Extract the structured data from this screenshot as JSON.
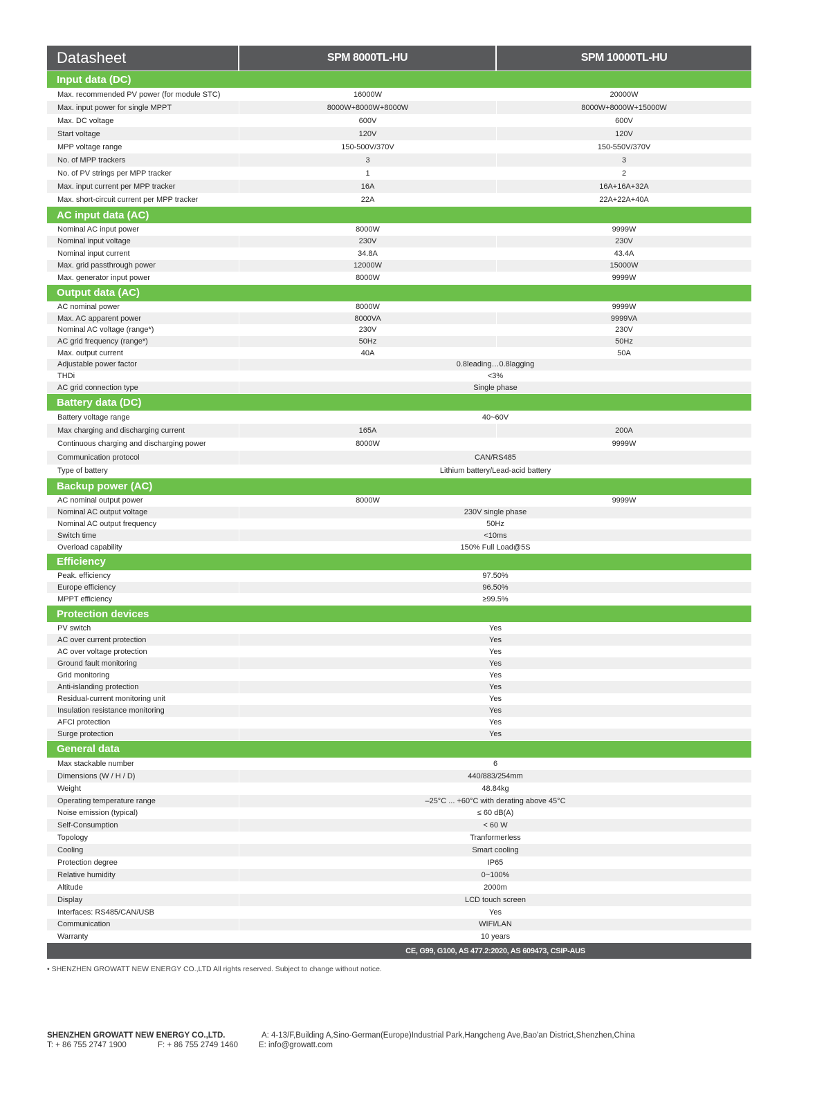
{
  "header": {
    "title": "Datasheet",
    "model1": "SPM 8000TL-HU",
    "model2": "SPM 10000TL-HU"
  },
  "colors": {
    "section_green": "#6cc04a",
    "header_gray": "#58595b",
    "row_alt": "#efefef"
  },
  "sections": [
    {
      "title": "Input data (DC)",
      "rows": [
        [
          "Max. recommended PV power (for module STC)",
          "16000W",
          "20000W"
        ],
        [
          "Max. input power for single MPPT",
          "8000W+8000W+8000W",
          "8000W+8000W+15000W"
        ],
        [
          "Max. DC voltage",
          "600V",
          "600V"
        ],
        [
          "Start voltage",
          "120V",
          "120V"
        ],
        [
          "MPP voltage range",
          "150-500V/370V",
          "150-550V/370V"
        ],
        [
          "No. of MPP trackers",
          "3",
          "3"
        ],
        [
          "No. of PV strings per MPP tracker",
          "1",
          "2"
        ],
        [
          "Max. input current per MPP tracker",
          "16A",
          "16A+16A+32A"
        ],
        [
          "Max. short-circuit current per MPP tracker",
          "22A",
          "22A+22A+40A"
        ]
      ]
    },
    {
      "title": "AC input data (AC)",
      "rows": [
        [
          "Nominal AC input power",
          "8000W",
          "9999W"
        ],
        [
          "Nominal input voltage",
          "230V",
          "230V"
        ],
        [
          "Nominal input current",
          "34.8A",
          "43.4A"
        ],
        [
          "Max. grid passthrough power",
          "12000W",
          "15000W"
        ],
        [
          "Max. generator input power",
          "8000W",
          "9999W"
        ]
      ]
    },
    {
      "title": "Output data (AC)",
      "rows": [
        [
          "AC nominal power",
          "8000W",
          "9999W"
        ],
        [
          "Max. AC apparent power",
          "8000VA",
          "9999VA"
        ],
        [
          "Nominal AC voltage (range*)",
          "230V",
          "230V"
        ],
        [
          "AC grid frequency (range*)",
          "50Hz",
          "50Hz"
        ],
        [
          "Max. output current",
          "40A",
          "50A"
        ],
        [
          "Adjustable power factor",
          "0.8leading…0.8lagging"
        ],
        [
          "THDi",
          "<3%"
        ],
        [
          "AC grid connection type",
          "Single phase"
        ]
      ]
    },
    {
      "title": "Battery data (DC)",
      "rows": [
        [
          "Battery voltage range",
          "40~60V"
        ],
        [
          "Max charging and discharging current",
          "165A",
          "200A"
        ],
        [
          "Continuous charging and discharging power",
          "8000W",
          "9999W"
        ],
        [
          "Communication protocol",
          "CAN/RS485"
        ],
        [
          "Type of battery",
          "Lithium battery/Lead-acid battery"
        ]
      ]
    },
    {
      "title": "Backup power (AC)",
      "rows": [
        [
          "AC nominal output power",
          "8000W",
          "9999W"
        ],
        [
          "Nominal AC output voltage",
          "230V single phase"
        ],
        [
          "Nominal AC output frequency",
          "50Hz"
        ],
        [
          "Switch time",
          "<10ms"
        ],
        [
          "Overload capability",
          "150% Full Load@5S"
        ]
      ]
    },
    {
      "title": "Efficiency",
      "rows": [
        [
          "Peak. efficiency",
          "97.50%"
        ],
        [
          "Europe efficiency",
          "96.50%"
        ],
        [
          "MPPT efficiency",
          "≥99.5%"
        ]
      ]
    },
    {
      "title": "Protection devices",
      "rows": [
        [
          "PV switch",
          "Yes"
        ],
        [
          "AC over current protection",
          "Yes"
        ],
        [
          "AC over voltage protection",
          "Yes"
        ],
        [
          "Ground fault monitoring",
          "Yes"
        ],
        [
          "Grid monitoring",
          "Yes"
        ],
        [
          "Anti-islanding protection",
          "Yes"
        ],
        [
          "Residual-current monitoring unit",
          "Yes"
        ],
        [
          "Insulation resistance monitoring",
          "Yes"
        ],
        [
          "AFCI protection",
          "Yes"
        ],
        [
          "Surge protection",
          "Yes"
        ]
      ]
    },
    {
      "title": "General data",
      "rows": [
        [
          "Max stackable number",
          "6"
        ],
        [
          "Dimensions (W / H / D)",
          "440/883/254mm"
        ],
        [
          "Weight",
          "48.84kg"
        ],
        [
          "Operating temperature range",
          "–25°C ... +60°C with derating above 45°C"
        ],
        [
          "Noise emission (typical)",
          "≤ 60 dB(A)"
        ],
        [
          "Self-Consumption",
          "< 60 W"
        ],
        [
          "Topology",
          "Tranformerless"
        ],
        [
          "Cooling",
          "Smart cooling"
        ],
        [
          "Protection degree",
          "IP65"
        ],
        [
          "Relative humidity",
          "0~100%"
        ],
        [
          "Altitude",
          "2000m"
        ],
        [
          "Display",
          "LCD touch screen"
        ],
        [
          "Interfaces: RS485/CAN/USB",
          "Yes"
        ],
        [
          "Communication",
          "WIFI/LAN"
        ],
        [
          "Warranty",
          "10 years"
        ]
      ]
    }
  ],
  "certifications": "CE, G99, G100, AS 477.2:2020, AS 609473, CSIP-AUS",
  "note": "• SHENZHEN GROWATT NEW ENERGY CO.,LTD All rights reserved. Subject to change without notice.",
  "footer": {
    "company": "SHENZHEN GROWATT NEW ENERGY CO.,LTD.",
    "address": "A: 4-13/F,Building A,Sino-German(Europe)Industrial Park,Hangcheng Ave,Bao'an District,Shenzhen,China",
    "tel": "T:  + 86 755 2747 1900",
    "fax": "F:  + 86 755 2749 1460",
    "email": "E:  info@growatt.com"
  }
}
